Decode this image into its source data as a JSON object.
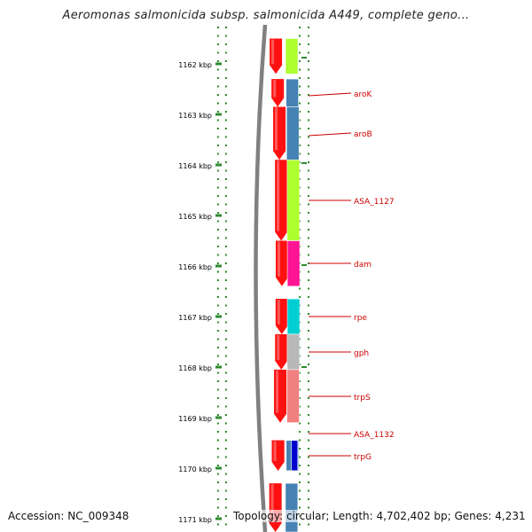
{
  "title": "Aeromonas salmonicida subsp. salmonicida A449, complete geno...",
  "footer": {
    "accession": "Accession: NC_009348",
    "summary": "Topology: circular; Length: 4,702,402 bp; Genes: 4,231"
  },
  "colors": {
    "ruler": "#2e8b2e",
    "backbone": "#808080",
    "label": "#cc0000",
    "gene_arrow": "#ff1010"
  },
  "chart_data": {
    "type": "linear-genome-map",
    "axis_unit": "kbp",
    "ticks": [
      {
        "kbp": 1162,
        "label": "1162 kbp"
      },
      {
        "kbp": 1163,
        "label": "1163 kbp"
      },
      {
        "kbp": 1164,
        "label": "1164 kbp"
      },
      {
        "kbp": 1165,
        "label": "1165 kbp"
      },
      {
        "kbp": 1166,
        "label": "1166 kbp"
      },
      {
        "kbp": 1167,
        "label": "1167 kbp"
      },
      {
        "kbp": 1168,
        "label": "1168 kbp"
      },
      {
        "kbp": 1169,
        "label": "1169 kbp"
      },
      {
        "kbp": 1170,
        "label": "1170 kbp"
      },
      {
        "kbp": 1171,
        "label": "1171 kbp"
      }
    ],
    "range_kbp": [
      1161.6,
      1171.3
    ],
    "genes": [
      {
        "label": "",
        "start": 1161.5,
        "end": 1162.2,
        "color": "#adff2f"
      },
      {
        "label": "aroK",
        "start": 1162.3,
        "end": 1162.85,
        "color": "#4682b4"
      },
      {
        "label": "aroB",
        "start": 1162.85,
        "end": 1163.9,
        "color": "#4682b4"
      },
      {
        "label": "ASA_1127",
        "start": 1163.9,
        "end": 1165.5,
        "color": "#adff2f"
      },
      {
        "label": "dam",
        "start": 1165.5,
        "end": 1166.4,
        "color": "#ff1493"
      },
      {
        "label": "",
        "start": 1166.4,
        "end": 1166.65,
        "color": "#ffffff"
      },
      {
        "label": "rpe",
        "start": 1166.65,
        "end": 1167.35,
        "color": "#00ced1"
      },
      {
        "label": "gph",
        "start": 1167.35,
        "end": 1168.05,
        "color": "#b8b8b8"
      },
      {
        "label": "trpS",
        "start": 1168.05,
        "end": 1169.1,
        "color": "#f08080"
      },
      {
        "label": "ASA_1132",
        "start": 1169.15,
        "end": 1169.3,
        "color": "#ffffff"
      },
      {
        "label": "",
        "start": 1169.45,
        "end": 1170.05,
        "color": "#4682b4"
      },
      {
        "label": "trpG",
        "start": 1169.45,
        "end": 1170.05,
        "color": "#0000cd"
      },
      {
        "label": "",
        "start": 1170.3,
        "end": 1171.4,
        "color": "#4682b4"
      }
    ]
  }
}
